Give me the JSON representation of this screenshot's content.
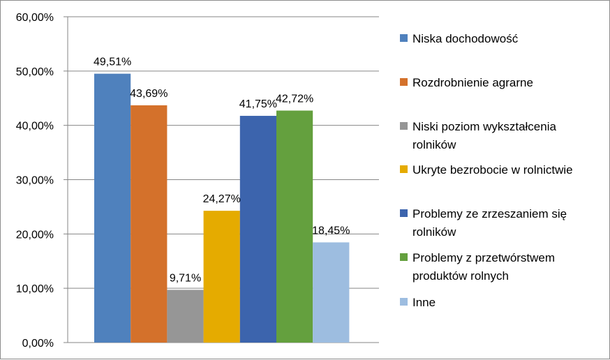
{
  "chart_data": {
    "type": "bar",
    "categories": [
      "Niska dochodowość",
      "Rozdrobnienie agrarne",
      "Niski poziom wykształcenia rolników",
      "Ukryte bezrobocie w rolnictwie",
      "Problemy ze zrzeszaniem się rolników",
      "Problemy z przetwórstwem produktów rolnych",
      "Inne"
    ],
    "values": [
      49.51,
      43.69,
      9.71,
      24.27,
      41.75,
      42.72,
      18.45
    ],
    "data_labels": [
      "49,51%",
      "43,69%",
      "9,71%",
      "24,27%",
      "41,75%",
      "42,72%",
      "18,45%"
    ],
    "colors": [
      "#4f81bd",
      "#d4712b",
      "#969696",
      "#e5ab00",
      "#3c64ad",
      "#64a03e",
      "#9dbde0"
    ],
    "legend": {
      "placement": "right",
      "entries": [
        [
          "Niska dochodowość"
        ],
        [
          "Rozdrobnienie agrarne"
        ],
        [
          "Niski poziom wykształcenia",
          "rolników"
        ],
        [
          "Ukryte bezrobocie w rolnictwie"
        ],
        [
          "Problemy ze zrzeszaniem się",
          "rolników"
        ],
        [
          "Problemy z przetwórstwem",
          "produktów rolnych"
        ],
        [
          "Inne"
        ]
      ]
    },
    "ylim": [
      0,
      60
    ],
    "yticks": [
      0,
      10,
      20,
      30,
      40,
      50,
      60
    ],
    "ytick_labels": [
      "0,00%",
      "10,00%",
      "20,00%",
      "30,00%",
      "40,00%",
      "50,00%",
      "60,00%"
    ],
    "grid": true,
    "title": "",
    "xlabel": "",
    "ylabel": ""
  }
}
